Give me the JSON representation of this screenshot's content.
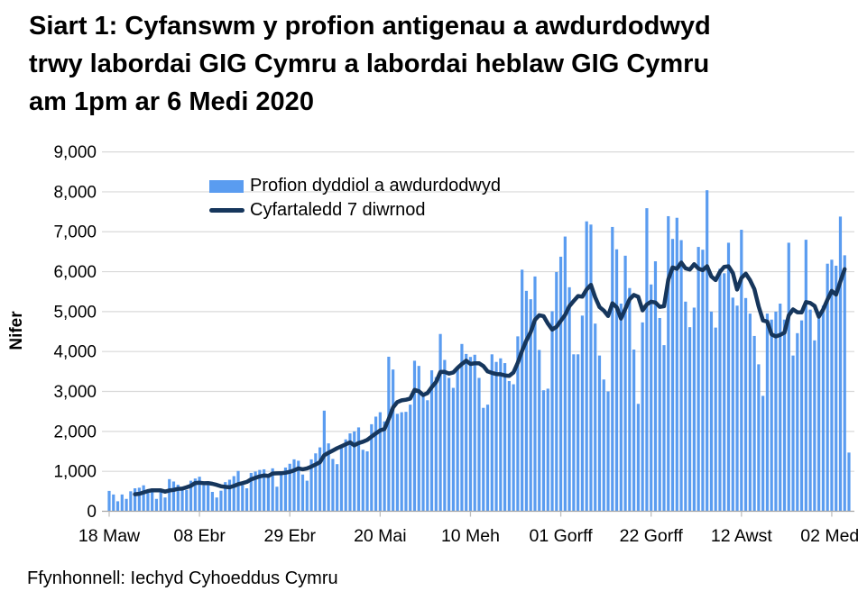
{
  "title_lines": [
    "Siart 1: Cyfanswm y profion antigenau a awdurdodwyd",
    "trwy labordai GIG Cymru a labordai heblaw GIG Cymru",
    "am 1pm ar 6 Medi 2020"
  ],
  "source_text": "Ffynhonnell: Iechyd Cyhoeddus Cymru",
  "colors": {
    "bar": "#5a9cf0",
    "line": "#16365c",
    "grid": "#d9d9d9",
    "axis": "#a6a6a6",
    "tick": "#bfbfbf",
    "text": "#000000"
  },
  "legend": {
    "items": [
      {
        "label": "Profion dyddiol a awdurdodwyd",
        "swatch": "bar"
      },
      {
        "label": "Cyfartaledd 7 diwrnod",
        "swatch": "line"
      }
    ]
  },
  "chart_data": {
    "type": "bar",
    "title": "Siart 1: Cyfanswm y profion antigenau a awdurdodwyd trwy labordai GIG Cymru a labordai heblaw GIG Cymru am 1pm ar 6 Medi 2020",
    "xlabel": "",
    "ylabel": "Nifer",
    "ylim": [
      0,
      9000
    ],
    "grid": true,
    "legend_position": "top-left-inside",
    "y_ticks": [
      0,
      1000,
      2000,
      3000,
      4000,
      5000,
      6000,
      7000,
      8000,
      9000
    ],
    "y_tick_labels": [
      "0",
      "1,000",
      "2,000",
      "3,000",
      "4,000",
      "5,000",
      "6,000",
      "7,000",
      "8,000",
      "9,000"
    ],
    "x_tick_labels": [
      "18 Maw",
      "08 Ebr",
      "29 Ebr",
      "20 Mai",
      "10 Meh",
      "01 Gorff",
      "22 Gorff",
      "12 Awst",
      "02 Medi"
    ],
    "x_tick_day_index": [
      0,
      21,
      42,
      63,
      84,
      105,
      126,
      147,
      168
    ],
    "x_start_label": "18 Maw",
    "x_end_label": "02 Medi",
    "days_total": 173,
    "series": [
      {
        "name": "Profion dyddiol a awdurdodwyd",
        "type": "bar",
        "values": [
          510,
          420,
          250,
          420,
          310,
          500,
          575,
          590,
          650,
          485,
          575,
          310,
          485,
          345,
          805,
          745,
          665,
          615,
          535,
          765,
          820,
          865,
          650,
          690,
          485,
          345,
          515,
          730,
          790,
          880,
          1010,
          650,
          575,
          960,
          995,
          1035,
          1050,
          920,
          1075,
          615,
          975,
          1095,
          1190,
          1300,
          1265,
          920,
          765,
          1300,
          1450,
          1600,
          2520,
          1700,
          1310,
          1180,
          1620,
          1800,
          1950,
          2000,
          2100,
          1540,
          1500,
          2180,
          2370,
          2480,
          2250,
          3870,
          3550,
          2440,
          2480,
          2490,
          2670,
          3770,
          3640,
          2890,
          2780,
          3530,
          3360,
          4440,
          3790,
          3340,
          3090,
          3600,
          4190,
          3940,
          3865,
          3920,
          3340,
          2590,
          2670,
          3930,
          3740,
          3830,
          3710,
          3260,
          3180,
          4380,
          6050,
          5520,
          5310,
          5880,
          4040,
          3030,
          3070,
          5010,
          5990,
          6375,
          6880,
          5610,
          3930,
          3930,
          4900,
          7260,
          7180,
          4700,
          3900,
          3300,
          3000,
          7120,
          6560,
          5200,
          6400,
          5590,
          4050,
          2690,
          4730,
          7590,
          5680,
          6260,
          4840,
          4160,
          7390,
          6820,
          7350,
          6790,
          5250,
          4610,
          5100,
          6620,
          6550,
          8040,
          5000,
          4600,
          6075,
          5960,
          6725,
          5350,
          5150,
          7050,
          5340,
          4950,
          4390,
          3680,
          2890,
          4950,
          4800,
          5000,
          5200,
          4800,
          6725,
          3900,
          4460,
          4780,
          6800,
          5050,
          4280,
          4850,
          5150,
          6200,
          6300,
          6150,
          7380,
          6410,
          1470
        ]
      },
      {
        "name": "Cyfartaledd 7 diwrnod",
        "type": "line",
        "derivation": "7-day rolling mean of the daily bar values, plotted from day 7 onwards (final partial day excluded)"
      }
    ]
  }
}
